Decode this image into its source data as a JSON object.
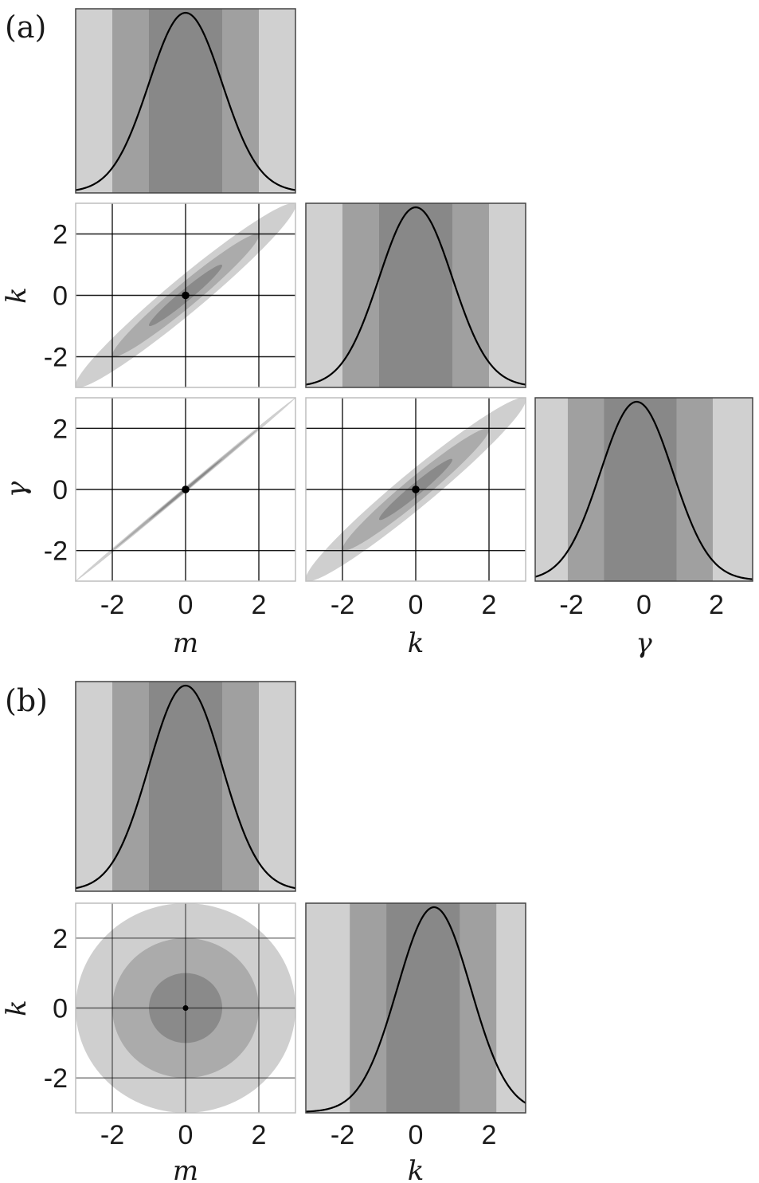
{
  "colors": {
    "band_outer": "#d0d0d0",
    "band_mid": "#a0a0a0",
    "band_inner": "#888888",
    "contour_outer": "#cfcfcf",
    "contour_mid": "#ababab",
    "contour_inner": "#8a8a8a",
    "curve": "#000000",
    "grid": "#000000",
    "frame": "#444444"
  },
  "chart_data": [
    {
      "panel_label": "(a)",
      "type": "corner",
      "parameters": [
        "m",
        "k",
        "γ"
      ],
      "axis_range": [
        -3,
        3
      ],
      "ticks": [
        -2,
        0,
        2
      ],
      "tick_labels": [
        "-2",
        "0",
        "2"
      ],
      "grid": true,
      "marginals": [
        {
          "parameter": "m",
          "mean": 0,
          "std": 1,
          "bands_sigma": [
            1,
            2
          ],
          "peak_offset": 0.0
        },
        {
          "parameter": "k",
          "mean": 0,
          "std": 1,
          "bands_sigma": [
            1,
            2
          ],
          "peak_offset": 0.0
        },
        {
          "parameter": "γ",
          "mean": -0.1,
          "std": 1,
          "bands_sigma": [
            1,
            2
          ],
          "peak_offset": -0.1
        }
      ],
      "joints": [
        {
          "x": "m",
          "y": "k",
          "mean": [
            0,
            0
          ],
          "correlation": 0.97,
          "contour_sigma": [
            1,
            2,
            3
          ],
          "marker": [
            0,
            0
          ]
        },
        {
          "x": "m",
          "y": "γ",
          "mean": [
            0,
            0
          ],
          "correlation": 0.9995,
          "contour_sigma": [
            1,
            2,
            3
          ],
          "marker": [
            0,
            0
          ]
        },
        {
          "x": "k",
          "y": "γ",
          "mean": [
            0,
            0
          ],
          "correlation": 0.97,
          "contour_sigma": [
            1,
            2,
            3
          ],
          "marker": [
            0,
            0
          ]
        }
      ]
    },
    {
      "panel_label": "(b)",
      "type": "corner",
      "parameters": [
        "m",
        "k"
      ],
      "axis_range": [
        -3,
        3
      ],
      "ticks": [
        -2,
        0,
        2
      ],
      "tick_labels": [
        "-2",
        "0",
        "2"
      ],
      "grid": true,
      "marginals": [
        {
          "parameter": "m",
          "mean": 0,
          "std": 1,
          "bands_sigma": [
            1,
            2
          ],
          "peak_offset": 0.0
        },
        {
          "parameter": "k",
          "mean": 0.2,
          "std": 1,
          "bands_sigma": [
            1,
            2
          ],
          "peak_offset": 0.3
        }
      ],
      "joints": [
        {
          "x": "m",
          "y": "k",
          "mean": [
            0,
            0
          ],
          "correlation": 0.0,
          "contour_sigma": [
            1,
            2,
            3
          ],
          "marker": [
            0,
            0
          ]
        }
      ]
    }
  ]
}
